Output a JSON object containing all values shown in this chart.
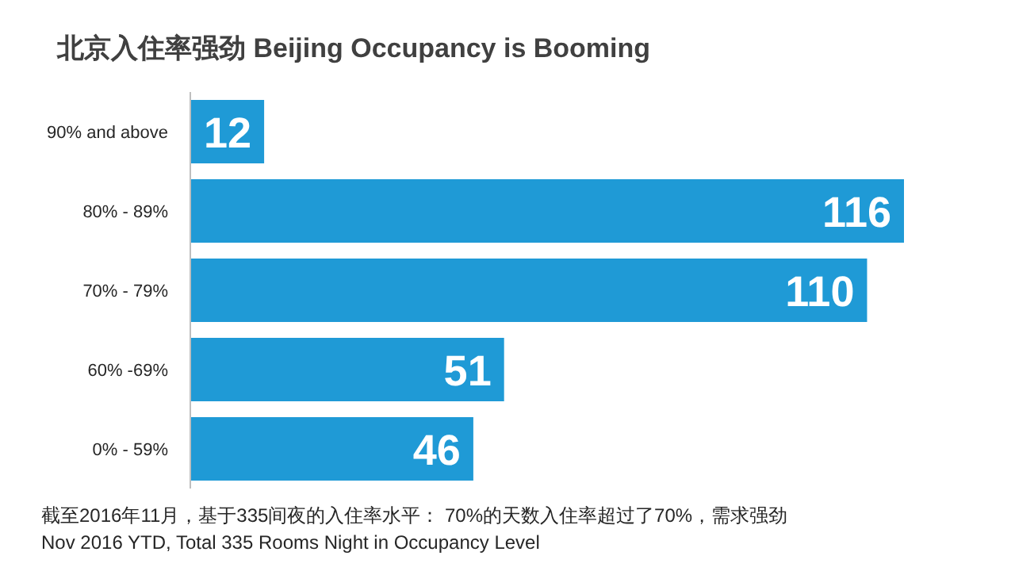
{
  "chart_data": {
    "type": "bar",
    "orientation": "horizontal",
    "title": "北京入住率强劲 Beijing Occupancy is Booming",
    "categories": [
      "90% and above",
      "80% - 89%",
      "70% - 79%",
      "60% -69%",
      "0% - 59%"
    ],
    "values": [
      12,
      116,
      110,
      51,
      46
    ],
    "color": "#1f9ad6",
    "data_labels": true,
    "annotations": [
      "截至2016年11月，基于335间夜的入住率水平： 70%的天数入住率超过了70%，需求强劲",
      "Nov 2016 YTD, Total 335 Rooms Night in Occupancy Level"
    ]
  }
}
